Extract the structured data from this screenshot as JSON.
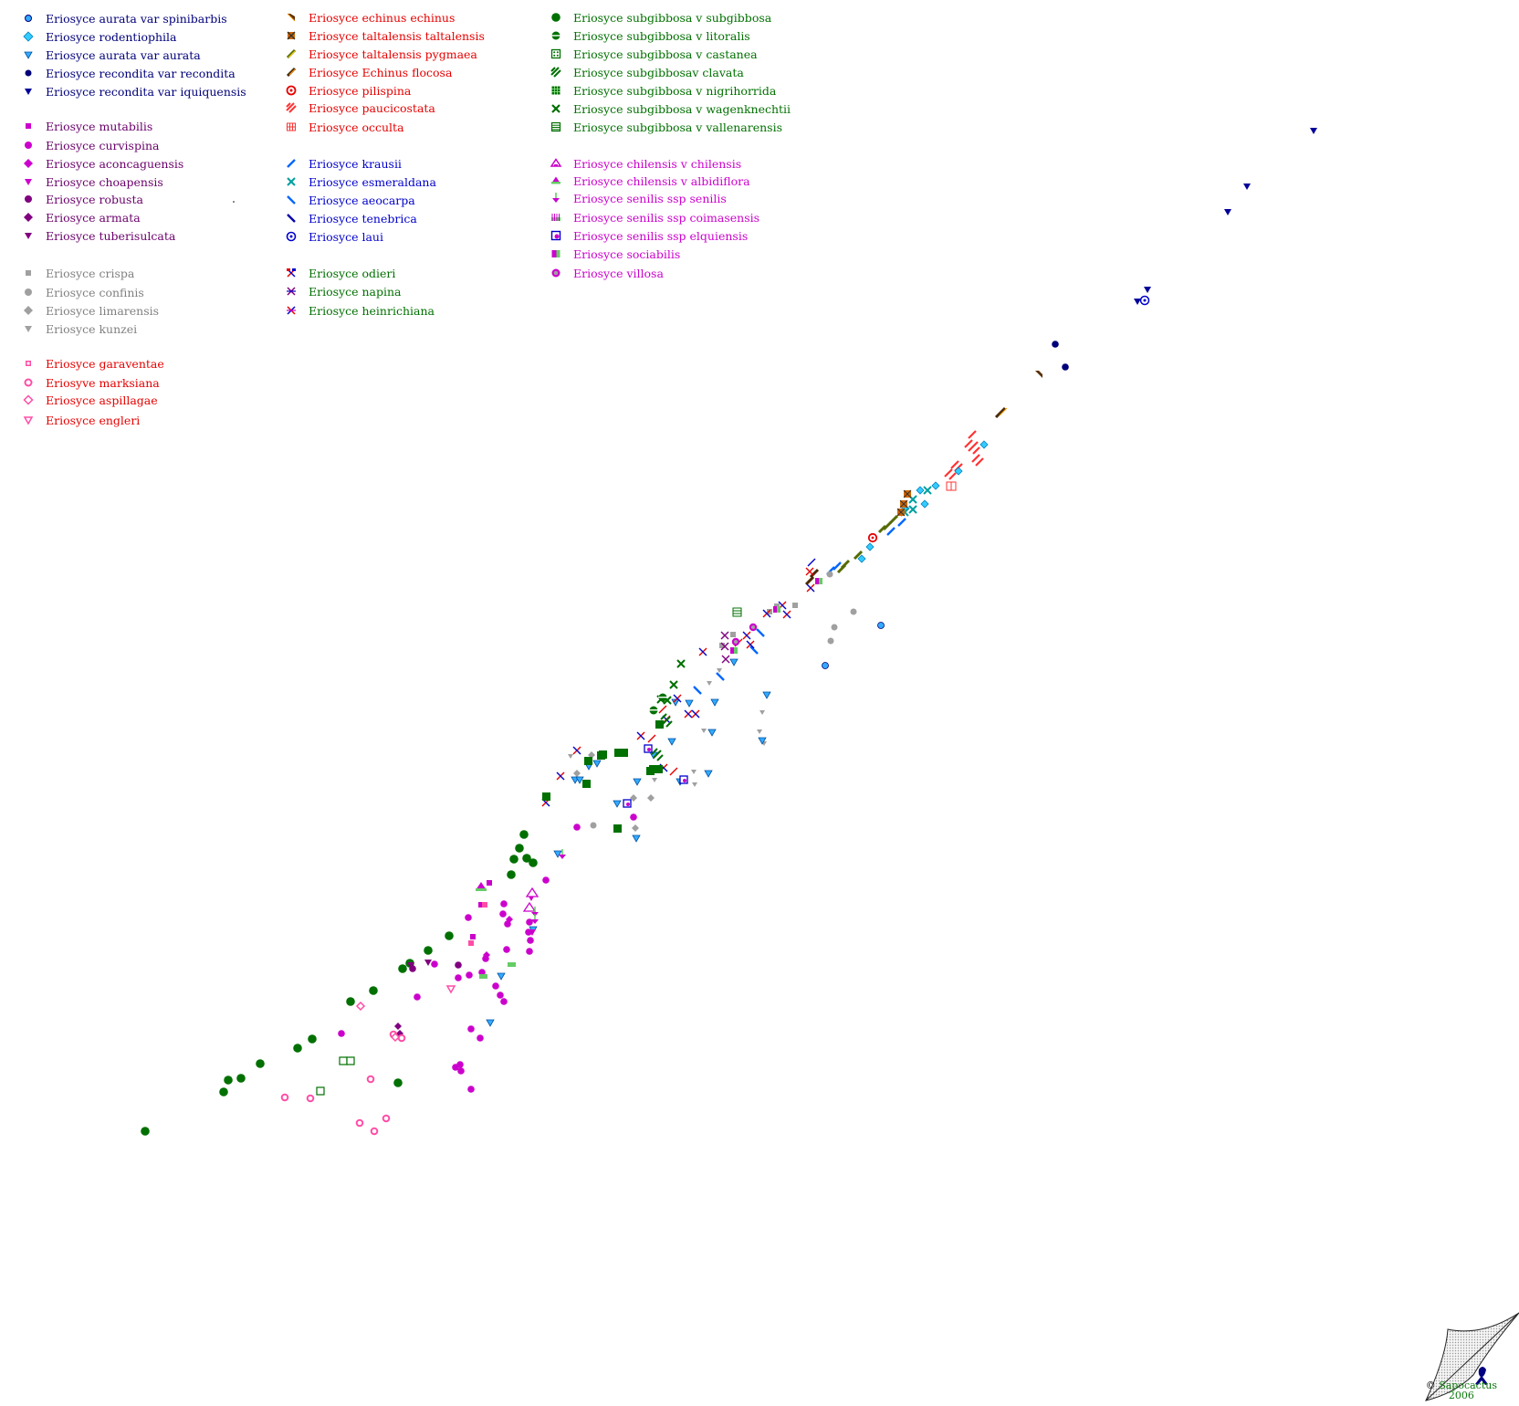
{
  "colors": {
    "navy": "#00007a",
    "purple": "#6a006a",
    "gray": "#808080",
    "red": "#e60000",
    "blue": "#0000cc",
    "green": "#007000",
    "magenta": "#cc00cc",
    "cyan": "#33aaff",
    "orange_red": "#ff3333"
  },
  "legend": [
    {
      "label": "Eriosyce aurata var spinibarbis",
      "color": "#00007a",
      "icon": "circle-cyan"
    },
    {
      "label": "Eriosyce rodentiophila",
      "color": "#00007a",
      "icon": "diamond-cyan"
    },
    {
      "label": "Eriosyce aurata var aurata",
      "color": "#00007a",
      "icon": "triangle-down-cyan"
    },
    {
      "label": "Eriosyce recondita var recondita",
      "color": "#00007a",
      "icon": "circle-navy"
    },
    {
      "label": "Eriosyce recondita var iquiquensis",
      "color": "#00007a",
      "icon": "triangle-down-navy"
    },
    {
      "label": "Eriosyce mutabilis",
      "color": "#6a006a",
      "icon": "square-magenta"
    },
    {
      "label": "Eriosyce curvispina",
      "color": "#6a006a",
      "icon": "circle-magenta"
    },
    {
      "label": "Eriosyce aconcaguensis",
      "color": "#6a006a",
      "icon": "diamond-magenta"
    },
    {
      "label": "Eriosyce choapensis",
      "color": "#6a006a",
      "icon": "triangle-down-magenta"
    },
    {
      "label": "Eriosyce robusta",
      "color": "#6a006a",
      "icon": "circle-purple"
    },
    {
      "label": "Eriosyce armata",
      "color": "#6a006a",
      "icon": "diamond-purple"
    },
    {
      "label": "Eriosyce tuberisulcata",
      "color": "#6a006a",
      "icon": "triangle-down-purple"
    },
    {
      "label": "Eriosyce crispa",
      "color": "#808080",
      "icon": "square-gray"
    },
    {
      "label": "Eriosyce confinis",
      "color": "#808080",
      "icon": "circle-gray"
    },
    {
      "label": "Eriosyce limarensis",
      "color": "#808080",
      "icon": "diamond-gray"
    },
    {
      "label": "Eriosyce kunzei",
      "color": "#808080",
      "icon": "triangle-down-gray"
    },
    {
      "label": "Eriosyce garaventae",
      "color": "#e60000",
      "icon": "square-pink"
    },
    {
      "label": "Eriosyve marksiana",
      "color": "#e60000",
      "icon": "ring-pink"
    },
    {
      "label": "Eriosyce aspillagae",
      "color": "#e60000",
      "icon": "diamond-pink"
    },
    {
      "label": "Eriosyce engleri",
      "color": "#e60000",
      "icon": "triangle-down-pink"
    },
    {
      "label": "Eriosyce echinus echinus",
      "color": "#e60000",
      "icon": "bowtie-brown"
    },
    {
      "label": "Eriosyce taltalensis taltalensis",
      "color": "#e60000",
      "icon": "cross-brown"
    },
    {
      "label": "Eriosyce taltalensis pygmaea",
      "color": "#e60000",
      "icon": "slash-olive"
    },
    {
      "label": "Eriosyce Echinus flocosa",
      "color": "#e60000",
      "icon": "slash-brown"
    },
    {
      "label": "Eriosyce pilispina",
      "color": "#e60000",
      "icon": "target-red"
    },
    {
      "label": "Eriosyce paucicostata",
      "color": "#e60000",
      "icon": "stripes-red"
    },
    {
      "label": "Eriosyce occulta",
      "color": "#e60000",
      "icon": "grid-red"
    },
    {
      "label": "Eriosyce krausii",
      "color": "#0000cc",
      "icon": "slash-blue"
    },
    {
      "label": "Eriosyce esmeraldana",
      "color": "#0000cc",
      "icon": "x-teal"
    },
    {
      "label": "Eriosyce aeocarpa",
      "color": "#0000cc",
      "icon": "backslash-blue"
    },
    {
      "label": "Eriosyce tenebrica",
      "color": "#0000cc",
      "icon": "backslash-navy"
    },
    {
      "label": "Eriosyce laui",
      "color": "#0000cc",
      "icon": "target-blue"
    },
    {
      "label": "Eriosyce odieri",
      "color": "#007000",
      "icon": "hammer-red"
    },
    {
      "label": "Eriosyce napina",
      "color": "#007000",
      "icon": "asterisk-purple"
    },
    {
      "label": "Eriosyce heinrichiana",
      "color": "#007000",
      "icon": "x-mixed"
    },
    {
      "label": "Eriosyce subgibbosa v subgibbosa",
      "color": "#007000",
      "icon": "circle-green"
    },
    {
      "label": "Eriosyce subgibbosa v litoralis",
      "color": "#007000",
      "icon": "split-circle-green"
    },
    {
      "label": "Eriosyce subgibbosa v castanea",
      "color": "#007000",
      "icon": "box-dots-green"
    },
    {
      "label": "Eriosyce subgibbosav clavata",
      "color": "#007000",
      "icon": "stripes-green"
    },
    {
      "label": "Eriosyce subgibbosa v nigrihorrida",
      "color": "#007000",
      "icon": "grid-green"
    },
    {
      "label": "Eriosyce subgibbosa v wagenknechtii",
      "color": "#007000",
      "icon": "x-green"
    },
    {
      "label": "Eriosyce subgibbosa v vallenarensis",
      "color": "#007000",
      "icon": "lines-green"
    },
    {
      "label": "Eriosyce chilensis v chilensis",
      "color": "#cc00cc",
      "icon": "tri-up-magenta"
    },
    {
      "label": "Eriosyce chilensis v albidiflora",
      "color": "#cc00cc",
      "icon": "tri-up-green"
    },
    {
      "label": "Eriosyce senilis ssp senilis",
      "color": "#cc00cc",
      "icon": "arrow-down-magenta"
    },
    {
      "label": "Eriosyce senilis ssp coimasensis",
      "color": "#cc00cc",
      "icon": "comb-green"
    },
    {
      "label": "Eriosyce senilis ssp elquiensis",
      "color": "#cc00cc",
      "icon": "square-blue-ring"
    },
    {
      "label": "Eriosyce sociabilis",
      "color": "#cc00cc",
      "icon": "square-split"
    },
    {
      "label": "Eriosyce villosa",
      "color": "#cc00cc",
      "icon": "circle-gray-ring"
    }
  ],
  "logo": {
    "line1": "Sapocactus",
    "line2": "2006",
    "copyright": "©"
  }
}
